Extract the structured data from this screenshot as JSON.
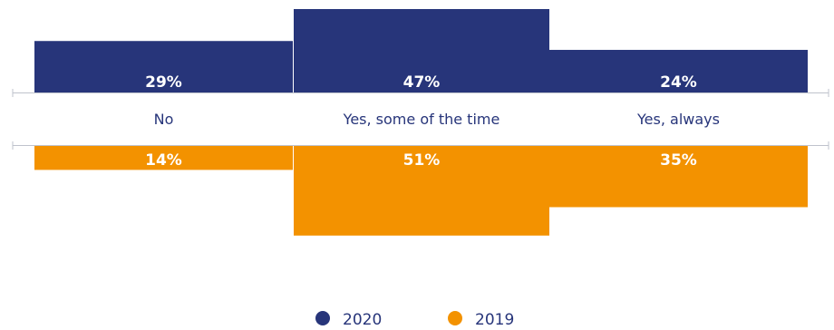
{
  "chart_data": {
    "type": "bar",
    "categories": [
      "No",
      "Yes, some of the time",
      "Yes, always"
    ],
    "series": [
      {
        "name": "2020",
        "values": [
          29,
          47,
          24
        ],
        "labels": [
          "29%",
          "47%",
          "24%"
        ],
        "color": "#27357a"
      },
      {
        "name": "2019",
        "values": [
          14,
          51,
          35
        ],
        "labels": [
          "14%",
          "51%",
          "35%"
        ],
        "color": "#f39200"
      }
    ],
    "unit": "%",
    "legend_position": "bottom",
    "grid": false,
    "title": "",
    "xlabel": "",
    "ylabel": ""
  }
}
